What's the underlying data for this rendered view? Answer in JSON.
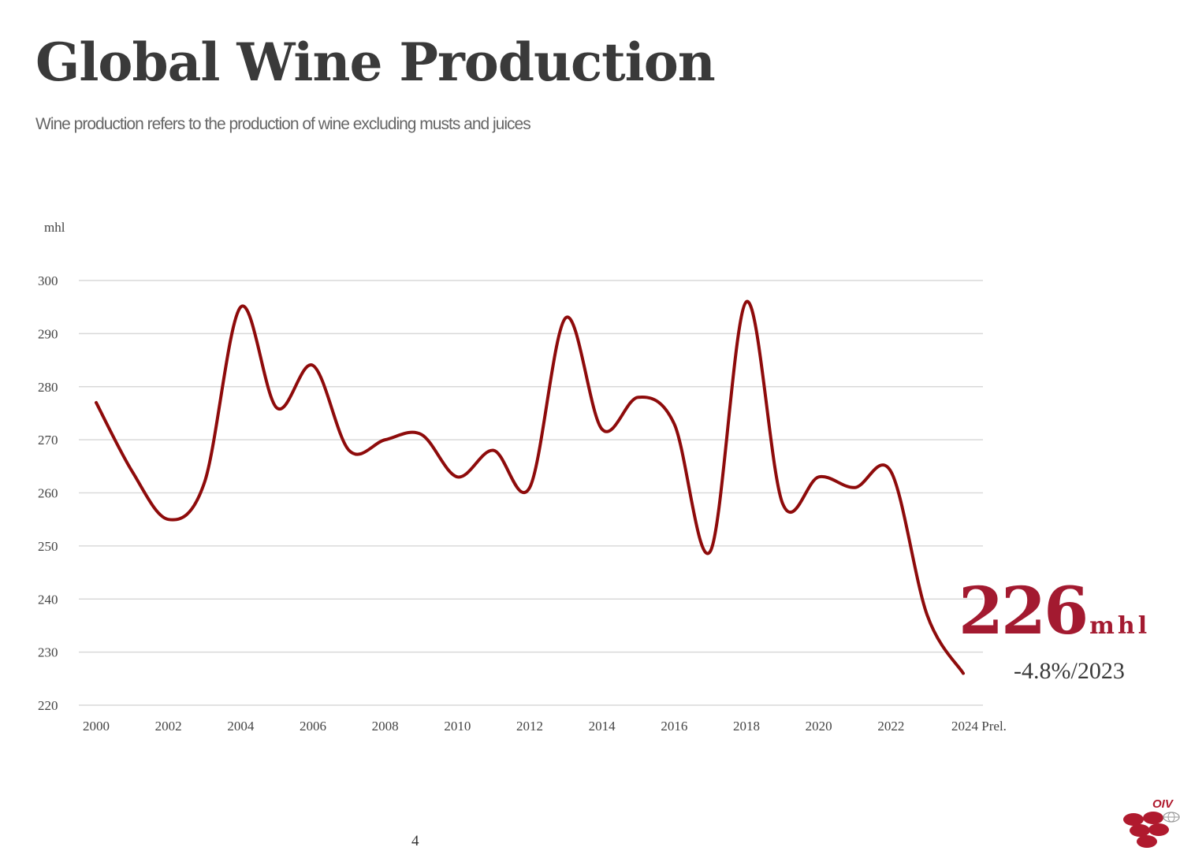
{
  "header": {
    "title": "Global Wine Production",
    "subtitle": "Wine production refers to the production of wine excluding musts and juices"
  },
  "chart_data": {
    "type": "line",
    "title": "Global Wine Production",
    "ylabel": "mhl",
    "xlabel": "",
    "ylim": [
      220,
      300
    ],
    "yticks": [
      220,
      230,
      240,
      250,
      260,
      270,
      280,
      290,
      300
    ],
    "x": [
      2000,
      2001,
      2002,
      2003,
      2004,
      2005,
      2006,
      2007,
      2008,
      2009,
      2010,
      2011,
      2012,
      2013,
      2014,
      2015,
      2016,
      2017,
      2018,
      2019,
      2020,
      2021,
      2022,
      2023,
      2024
    ],
    "xtick_labels": [
      "2000",
      "2002",
      "2004",
      "2006",
      "2008",
      "2010",
      "2012",
      "2014",
      "2016",
      "2018",
      "2020",
      "2022",
      "2024 Prel."
    ],
    "series": [
      {
        "name": "Global wine production",
        "color": "#8e0b0b",
        "values": [
          277,
          264,
          255,
          262,
          295,
          276,
          284,
          268,
          270,
          271,
          263,
          268,
          261,
          293,
          272,
          278,
          273,
          249,
          296,
          258,
          263,
          261,
          264,
          237,
          226
        ]
      }
    ],
    "grid": true,
    "legend": "none",
    "annotations": {
      "value": "226",
      "unit": "mhl",
      "change": "-4.8%/2023"
    }
  },
  "footer": {
    "page_number": "4",
    "logo_text": "OIV"
  }
}
